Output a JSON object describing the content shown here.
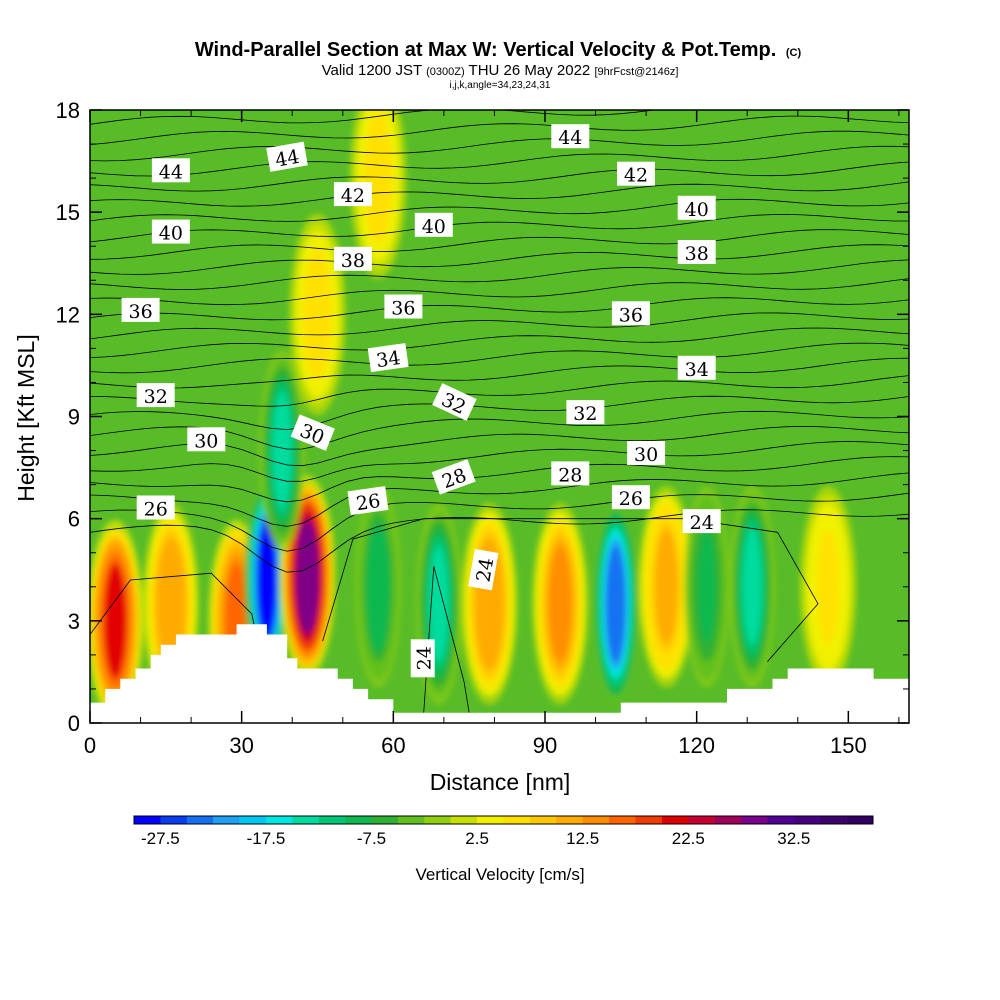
{
  "titles": {
    "main": "Wind-Parallel Section at Max W: Vertical Velocity & Pot.Temp.",
    "main_suffix": "(C)",
    "valid_prefix": "Valid 1200 JST",
    "valid_utc": "(0300Z)",
    "valid_date": "THU 26 May 2022",
    "valid_fcst": "[9hrFcst@2146z]",
    "indices": "i,j,k,angle=34,23,24,31"
  },
  "chart_data": {
    "type": "heatmap",
    "xlabel": "Distance [nm]",
    "ylabel": "Height [Kft MSL]",
    "xlim": [
      0,
      162
    ],
    "ylim": [
      0,
      18
    ],
    "xticks": [
      0,
      30,
      60,
      90,
      120,
      150
    ],
    "yticks": [
      0,
      3,
      6,
      9,
      12,
      15,
      18
    ],
    "colorbar": {
      "title": "Vertical Velocity [cm/s]",
      "min": -30,
      "max": 40,
      "step": 2.5,
      "tick_labels": [
        "-27.5",
        "-17.5",
        "-7.5",
        "2.5",
        "12.5",
        "22.5",
        "32.5"
      ],
      "tick_values": [
        -27.5,
        -17.5,
        -7.5,
        2.5,
        12.5,
        22.5,
        32.5
      ],
      "colors": [
        "#0000ff",
        "#0a3cf0",
        "#1470f0",
        "#1ea0f5",
        "#00c8f5",
        "#00e8e0",
        "#00dca0",
        "#00c878",
        "#10b850",
        "#30b030",
        "#60c020",
        "#90d010",
        "#c8e000",
        "#f0f000",
        "#ffe000",
        "#ffc800",
        "#ffaa00",
        "#ff8c00",
        "#ff6400",
        "#f03c00",
        "#e00000",
        "#c80032",
        "#a0005a",
        "#78008c",
        "#500096",
        "#460082",
        "#3c006e",
        "#320064"
      ]
    },
    "series": [
      {
        "kind": "updraft",
        "x": 5,
        "y": 3,
        "w": 20
      },
      {
        "kind": "updraft",
        "x": 16,
        "y": 3.5,
        "w": 12
      },
      {
        "kind": "updraft",
        "x": 29,
        "y": 3,
        "w": 16
      },
      {
        "kind": "downdraft",
        "x": 35,
        "y": 4.2,
        "w": -28
      },
      {
        "kind": "updraft",
        "x": 43,
        "y": 4.3,
        "w": 28
      },
      {
        "kind": "downdraft",
        "x": 57,
        "y": 4,
        "w": -10
      },
      {
        "kind": "downdraft",
        "x": 69,
        "y": 3.5,
        "w": -15
      },
      {
        "kind": "updraft",
        "x": 79,
        "y": 3.5,
        "w": 12
      },
      {
        "kind": "updraft",
        "x": 93,
        "y": 3.5,
        "w": 14
      },
      {
        "kind": "downdraft",
        "x": 104,
        "y": 3.5,
        "w": -25
      },
      {
        "kind": "updraft",
        "x": 114,
        "y": 4,
        "w": 10
      },
      {
        "kind": "downdraft",
        "x": 122,
        "y": 4,
        "w": -8
      },
      {
        "kind": "downdraft",
        "x": 131,
        "y": 4,
        "w": -14
      },
      {
        "kind": "updraft",
        "x": 146,
        "y": 4,
        "w": 5
      },
      {
        "kind": "updraft",
        "x": 57,
        "y": 16,
        "w": 6
      },
      {
        "kind": "updraft",
        "x": 45,
        "y": 12,
        "w": 6
      },
      {
        "kind": "downdraft",
        "x": 38,
        "y": 8,
        "w": -15
      }
    ],
    "contour_labels": [
      {
        "text": "44",
        "x": 16,
        "y": 16.2,
        "angle": 0
      },
      {
        "text": "44",
        "x": 39,
        "y": 16.6,
        "angle": -10
      },
      {
        "text": "44",
        "x": 95,
        "y": 17.2,
        "angle": 0
      },
      {
        "text": "42",
        "x": 52,
        "y": 15.5,
        "angle": 0
      },
      {
        "text": "42",
        "x": 108,
        "y": 16.1,
        "angle": 0
      },
      {
        "text": "40",
        "x": 16,
        "y": 14.4,
        "angle": 0
      },
      {
        "text": "40",
        "x": 68,
        "y": 14.6,
        "angle": 0
      },
      {
        "text": "40",
        "x": 120,
        "y": 15.1,
        "angle": 0
      },
      {
        "text": "38",
        "x": 52,
        "y": 13.6,
        "angle": 0
      },
      {
        "text": "38",
        "x": 120,
        "y": 13.8,
        "angle": 0
      },
      {
        "text": "36",
        "x": 10,
        "y": 12.1,
        "angle": 0
      },
      {
        "text": "36",
        "x": 62,
        "y": 12.2,
        "angle": 0
      },
      {
        "text": "36",
        "x": 107,
        "y": 12.0,
        "angle": 0
      },
      {
        "text": "34",
        "x": 59,
        "y": 10.7,
        "angle": -8
      },
      {
        "text": "34",
        "x": 120,
        "y": 10.4,
        "angle": 0
      },
      {
        "text": "32",
        "x": 13,
        "y": 9.6,
        "angle": 0
      },
      {
        "text": "32",
        "x": 72,
        "y": 9.4,
        "angle": 25
      },
      {
        "text": "32",
        "x": 98,
        "y": 9.1,
        "angle": 0
      },
      {
        "text": "30",
        "x": 23,
        "y": 8.3,
        "angle": 0
      },
      {
        "text": "30",
        "x": 44,
        "y": 8.5,
        "angle": 22
      },
      {
        "text": "30",
        "x": 110,
        "y": 7.9,
        "angle": 0
      },
      {
        "text": "28",
        "x": 72,
        "y": 7.2,
        "angle": -20
      },
      {
        "text": "28",
        "x": 95,
        "y": 7.3,
        "angle": 0
      },
      {
        "text": "26",
        "x": 13,
        "y": 6.3,
        "angle": 0
      },
      {
        "text": "26",
        "x": 55,
        "y": 6.5,
        "angle": -8
      },
      {
        "text": "26",
        "x": 107,
        "y": 6.6,
        "angle": 0
      },
      {
        "text": "24",
        "x": 121,
        "y": 5.9,
        "angle": 0
      },
      {
        "text": "24",
        "x": 78,
        "y": 4.5,
        "angle": -80
      },
      {
        "text": "24",
        "x": 66,
        "y": 1.9,
        "angle": -90
      }
    ]
  }
}
